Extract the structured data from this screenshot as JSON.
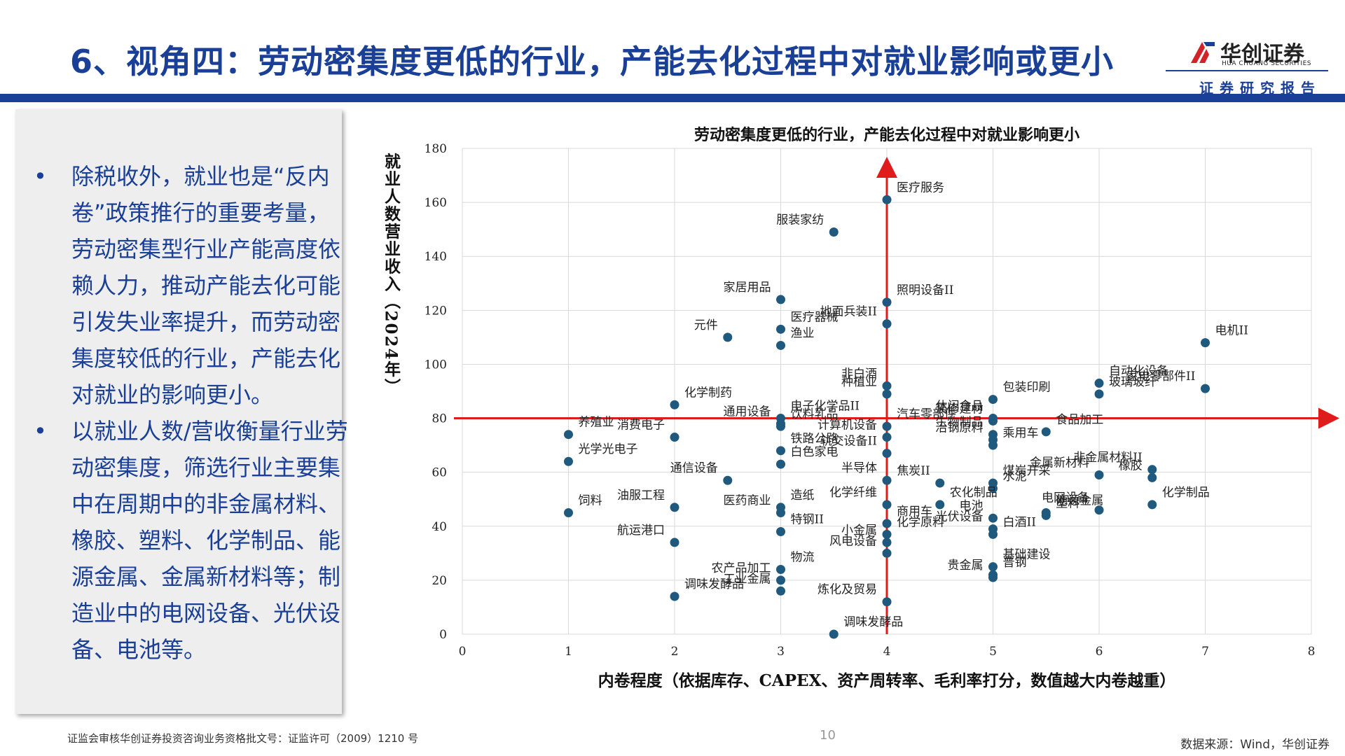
{
  "header": {
    "title": "6、视角四：劳动密集度更低的行业，产能去化过程中对就业影响或更小",
    "logo_cn": "华创证券",
    "logo_en": "HUA CHUANG SECURITIES",
    "report_label": "证券研究报告"
  },
  "colors": {
    "brand": "#1a3f96",
    "point": "#1f5a7e",
    "axis_red": "#e01b1b"
  },
  "bullets": [
    "除税收外，就业也是“反内卷”政策推行的重要考量，劳动密集型行业产能高度依赖人力，推动产能去化可能引发失业率提升，而劳动密集度较低的行业，产能去化对就业的影响更小。",
    "以就业人数/营收衡量行业劳动密集度，筛选行业主要集中在周期中的非金属材料、橡胶、塑料、化学制品、能源金属、金属新材料等；制造业中的电网设备、光伏设备、电池等。"
  ],
  "chart_data": {
    "type": "scatter",
    "title": "劳动密集度更低的行业，产能去化过程中对就业影响更小",
    "xlabel": "内卷程度（依据库存、CAPEX、资产周转率、毛利率打分，数值越大内卷越重）",
    "ylabel": "就业人数营业收入（2024年）",
    "xlim": [
      0,
      8
    ],
    "ylim": [
      0,
      180
    ],
    "xticks": [
      "0",
      "1",
      "2",
      "3",
      "4",
      "5",
      "6",
      "7",
      "8"
    ],
    "yticks": [
      "0",
      "20",
      "40",
      "60",
      "80",
      "100",
      "120",
      "140",
      "160",
      "180"
    ],
    "grid": true,
    "reference_lines": {
      "x": 4,
      "y": 80
    },
    "points": [
      {
        "label": "医疗服务",
        "x": 4,
        "y": 161
      },
      {
        "label": "服装家纺",
        "x": 3.5,
        "y": 149
      },
      {
        "label": "照明设备II",
        "x": 4,
        "y": 123
      },
      {
        "label": "家居用品",
        "x": 3,
        "y": 124
      },
      {
        "label": "医疗器械",
        "x": 3,
        "y": 113
      },
      {
        "label": "元件",
        "x": 2.5,
        "y": 110
      },
      {
        "label": "渔业",
        "x": 3,
        "y": 107
      },
      {
        "label": "地面兵装II",
        "x": 4,
        "y": 115
      },
      {
        "label": "电机II",
        "x": 7,
        "y": 108
      },
      {
        "label": "非白酒",
        "x": 4,
        "y": 92
      },
      {
        "label": "电子化学品II",
        "x": 3,
        "y": 80
      },
      {
        "label": "种植业",
        "x": 4,
        "y": 89
      },
      {
        "label": "包装印刷",
        "x": 5,
        "y": 87
      },
      {
        "label": "休闲食品",
        "x": 5,
        "y": 80
      },
      {
        "label": "自动化设备",
        "x": 6,
        "y": 93
      },
      {
        "label": "家电零部件II",
        "x": 7,
        "y": 91
      },
      {
        "label": "化学制药",
        "x": 2,
        "y": 85
      },
      {
        "label": "生物制品",
        "x": 5,
        "y": 74
      },
      {
        "label": "玻璃玻纤",
        "x": 6,
        "y": 89
      },
      {
        "label": "通用设备",
        "x": 3,
        "y": 78
      },
      {
        "label": "饮料乳品",
        "x": 3,
        "y": 77
      },
      {
        "label": "冶钢原料",
        "x": 5,
        "y": 72
      },
      {
        "label": "汽车零部件",
        "x": 4,
        "y": 77
      },
      {
        "label": "装修建材",
        "x": 5,
        "y": 79
      },
      {
        "label": "养殖业",
        "x": 1,
        "y": 74
      },
      {
        "label": "消费电子",
        "x": 2,
        "y": 73
      },
      {
        "label": "铁路公路",
        "x": 3,
        "y": 68
      },
      {
        "label": "计算机设备",
        "x": 4,
        "y": 73
      },
      {
        "label": "食品加工",
        "x": 5.5,
        "y": 75
      },
      {
        "label": "轨交设备II",
        "x": 4,
        "y": 67
      },
      {
        "label": "乘用车",
        "x": 5,
        "y": 70
      },
      {
        "label": "金属新材料",
        "x": 6,
        "y": 59
      },
      {
        "label": "光学光电子",
        "x": 1,
        "y": 64
      },
      {
        "label": "通信设备",
        "x": 2.5,
        "y": 57
      },
      {
        "label": "白色家电",
        "x": 3,
        "y": 63
      },
      {
        "label": "半导体",
        "x": 4,
        "y": 57
      },
      {
        "label": "煤炭开采",
        "x": 5,
        "y": 56
      },
      {
        "label": "非金属材料II",
        "x": 6.5,
        "y": 61
      },
      {
        "label": "水泥",
        "x": 5,
        "y": 54
      },
      {
        "label": "焦炭II",
        "x": 4.5,
        "y": 56
      },
      {
        "label": "能源金属",
        "x": 5.5,
        "y": 45
      },
      {
        "label": "橡胶",
        "x": 6.5,
        "y": 58
      },
      {
        "label": "饲料",
        "x": 1,
        "y": 45
      },
      {
        "label": "油服工程",
        "x": 2,
        "y": 47
      },
      {
        "label": "造纸",
        "x": 3,
        "y": 47
      },
      {
        "label": "化学纤维",
        "x": 4,
        "y": 48
      },
      {
        "label": "农化制品",
        "x": 4.5,
        "y": 48
      },
      {
        "label": "电池",
        "x": 5,
        "y": 43
      },
      {
        "label": "塑料",
        "x": 5.5,
        "y": 44
      },
      {
        "label": "医药商业",
        "x": 3,
        "y": 45
      },
      {
        "label": "化学制品",
        "x": 6.5,
        "y": 48
      },
      {
        "label": "航运港口",
        "x": 2,
        "y": 34
      },
      {
        "label": "商用车",
        "x": 4,
        "y": 41
      },
      {
        "label": "光伏设备",
        "x": 5,
        "y": 39
      },
      {
        "label": "特钢II",
        "x": 3,
        "y": 38
      },
      {
        "label": "电网设备",
        "x": 6,
        "y": 46
      },
      {
        "label": "化学原料",
        "x": 4,
        "y": 37
      },
      {
        "label": "小金属",
        "x": 4,
        "y": 34
      },
      {
        "label": "白酒II",
        "x": 5,
        "y": 37
      },
      {
        "label": "风电设备",
        "x": 4,
        "y": 30
      },
      {
        "label": "物流",
        "x": 3,
        "y": 24
      },
      {
        "label": "农产品加工",
        "x": 3,
        "y": 20
      },
      {
        "label": "基础建设",
        "x": 5,
        "y": 25
      },
      {
        "label": "工业金属",
        "x": 3,
        "y": 16
      },
      {
        "label": "普钢",
        "x": 5,
        "y": 22
      },
      {
        "label": "贵金属",
        "x": 5,
        "y": 21
      },
      {
        "label": "调味发酵品",
        "x": 2,
        "y": 14
      },
      {
        "label": "炼化及贸易",
        "x": 4,
        "y": 12
      },
      {
        "label": "调味发酵品2",
        "x": 3.5,
        "y": 0
      }
    ]
  },
  "footer": {
    "license": "证监会审核华创证券投资咨询业务资格批文号：证监许可（2009）1210 号",
    "page": "10",
    "source": "数据来源：Wind，华创证券"
  }
}
